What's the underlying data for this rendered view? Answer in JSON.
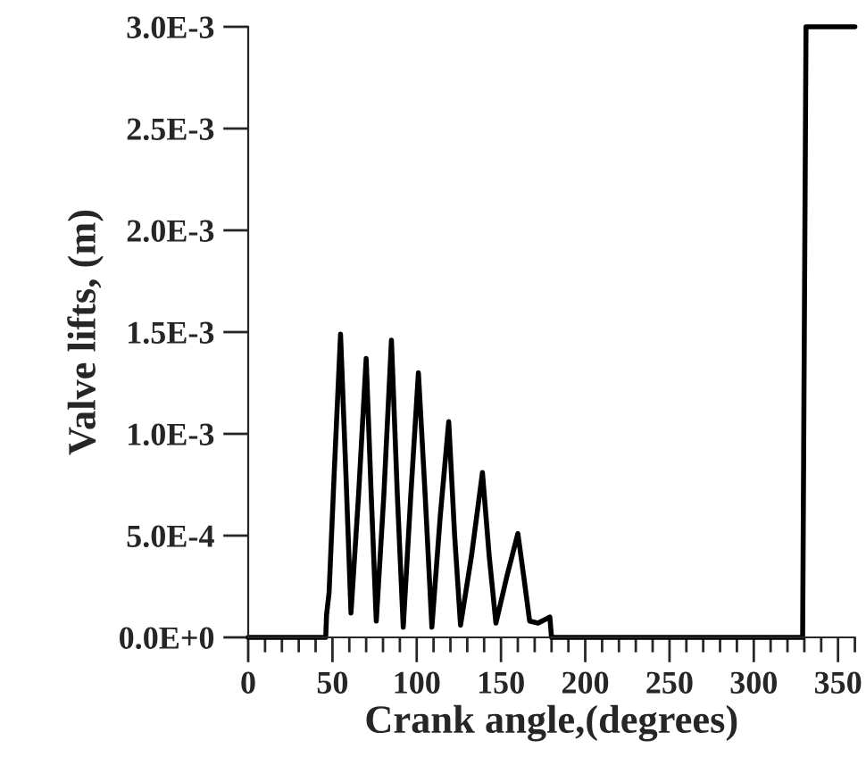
{
  "chart_data": {
    "type": "line",
    "xlabel": "Crank angle,(degrees)",
    "ylabel": "Valve lifts, (m)",
    "series": [
      {
        "color": "#000000",
        "x": [
          0,
          46,
          46.5,
          48,
          51,
          54.8,
          58,
          61,
          65.5,
          70,
          73,
          76,
          80.5,
          85,
          88.5,
          92,
          96.5,
          101,
          105,
          109,
          114,
          119,
          122.5,
          126,
          132.5,
          139,
          143,
          147,
          153.5,
          160,
          163.5,
          167,
          172,
          179,
          180,
          329,
          331,
          360
        ],
        "values": [
          0,
          0,
          0.00011,
          0.00022,
          0.0008,
          0.00149,
          0.0008,
          0.00012,
          0.0007,
          0.00137,
          0.0007,
          8e-05,
          0.0007,
          0.00146,
          0.0007,
          5e-05,
          0.0007,
          0.0013,
          0.0007,
          5e-05,
          0.0006,
          0.00106,
          0.0005,
          6e-05,
          0.0004,
          0.00081,
          0.0004,
          7e-05,
          0.0003,
          0.00051,
          0.0003,
          8e-05,
          7e-05,
          0.0001,
          0,
          0,
          0.003,
          0.003
        ]
      }
    ],
    "xlim": [
      0,
      360
    ],
    "ylim": [
      0,
      0.003
    ],
    "xticks": [
      0,
      {
        "value": 10,
        "label": null
      },
      {
        "value": 20,
        "label": null
      },
      {
        "value": 30,
        "label": null
      },
      {
        "value": 40,
        "label": null
      },
      50,
      {
        "value": 60,
        "label": null
      },
      {
        "value": 70,
        "label": null
      },
      {
        "value": 80,
        "label": null
      },
      {
        "value": 90,
        "label": null
      },
      100,
      {
        "value": 110,
        "label": null
      },
      {
        "value": 120,
        "label": null
      },
      {
        "value": 130,
        "label": null
      },
      {
        "value": 140,
        "label": null
      },
      150,
      {
        "value": 160,
        "label": null
      },
      {
        "value": 170,
        "label": null
      },
      {
        "value": 180,
        "label": null
      },
      {
        "value": 190,
        "label": null
      },
      200,
      {
        "value": 210,
        "label": null
      },
      {
        "value": 220,
        "label": null
      },
      {
        "value": 230,
        "label": null
      },
      {
        "value": 240,
        "label": null
      },
      250,
      {
        "value": 260,
        "label": null
      },
      {
        "value": 270,
        "label": null
      },
      {
        "value": 280,
        "label": null
      },
      {
        "value": 290,
        "label": null
      },
      300,
      {
        "value": 310,
        "label": null
      },
      {
        "value": 320,
        "label": null
      },
      {
        "value": 330,
        "label": null
      },
      {
        "value": 340,
        "label": null
      },
      350,
      {
        "value": 360,
        "label": null
      }
    ],
    "yticks": [
      {
        "value": 0,
        "label": "0.0E+0"
      },
      {
        "value": 0.0005,
        "label": "5.0E-4"
      },
      {
        "value": 0.001,
        "label": "1.0E-3"
      },
      {
        "value": 0.0015,
        "label": "1.5E-3"
      },
      {
        "value": 0.002,
        "label": "2.0E-3"
      },
      {
        "value": 0.0025,
        "label": "2.5E-3"
      },
      {
        "value": 0.003,
        "label": "3.0E-3"
      }
    ],
    "grid": false,
    "legend": false,
    "marker": "none",
    "line_style": "solid"
  }
}
